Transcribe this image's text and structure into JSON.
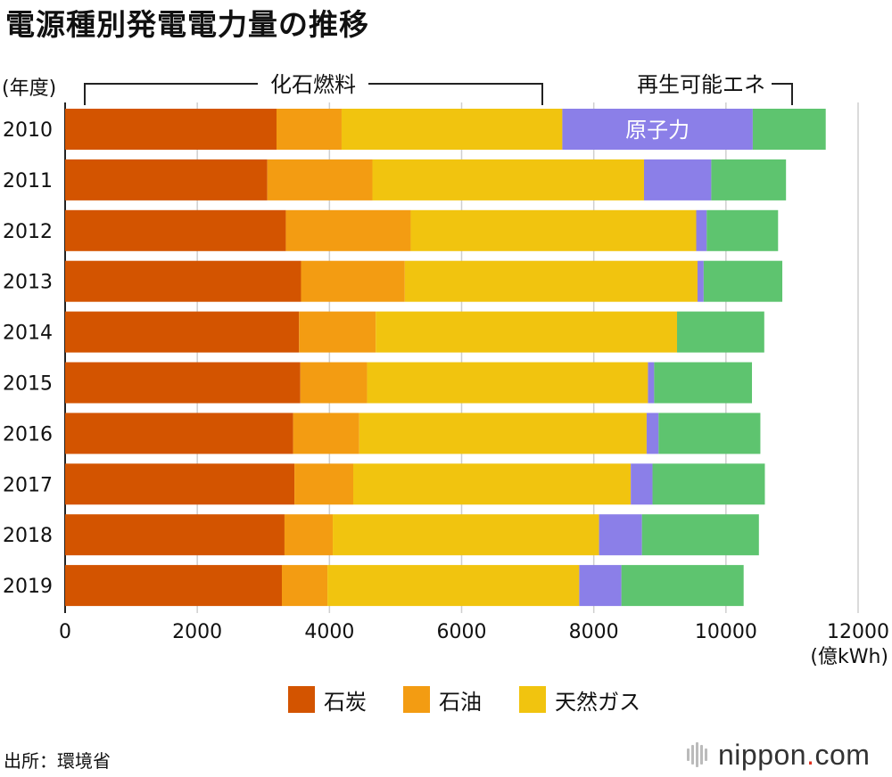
{
  "title": "電源種別発電電力量の推移",
  "source": "出所：環境省",
  "brand": {
    "name": "nippon",
    "dot": ".",
    "suffix": "com"
  },
  "colors": {
    "coal": "#d35400",
    "oil": "#f39c12",
    "gas": "#f1c40f",
    "nuclear": "#8b7fe8",
    "renewable": "#5ec46f",
    "grid": "#cfcfcf",
    "text": "#111111"
  },
  "chart_data": {
    "type": "bar",
    "orientation": "horizontal",
    "stacked": true,
    "ylabel": "(年度)",
    "xlabel": "(億kWh)",
    "xlim": [
      0,
      12000
    ],
    "xticks": [
      0,
      2000,
      4000,
      6000,
      8000,
      10000,
      12000
    ],
    "xtick_labels": [
      "0",
      "2000",
      "4000",
      "6000",
      "8000",
      "10000",
      "12000"
    ],
    "categories": [
      "2010",
      "2011",
      "2012",
      "2013",
      "2014",
      "2015",
      "2016",
      "2017",
      "2018",
      "2019"
    ],
    "series": [
      {
        "name": "石炭",
        "key": "coal",
        "values": [
          3199,
          3060,
          3340,
          3570,
          3540,
          3560,
          3450,
          3470,
          3320,
          3280
        ]
      },
      {
        "name": "石油",
        "key": "oil",
        "values": [
          985,
          1590,
          1890,
          1570,
          1160,
          1010,
          1000,
          890,
          730,
          690
        ]
      },
      {
        "name": "天然ガス",
        "key": "gas",
        "values": [
          3340,
          4110,
          4320,
          4430,
          4560,
          4250,
          4350,
          4200,
          4030,
          3810
        ]
      },
      {
        "name": "原子力",
        "key": "nuclear",
        "values": [
          2882,
          1018,
          159,
          93,
          0,
          94,
          181,
          329,
          649,
          638
        ]
      },
      {
        "name": "再生可能エネ",
        "key": "renewable",
        "values": [
          1104,
          1131,
          1080,
          1190,
          1320,
          1480,
          1540,
          1700,
          1770,
          1850
        ]
      }
    ],
    "annotations": {
      "fossil_bracket": "化石燃料",
      "renewable_bracket": "再生可能エネ",
      "nuclear_label": "原子力"
    },
    "legend": [
      "石炭",
      "石油",
      "天然ガス"
    ],
    "legend_position": "bottom-center"
  }
}
